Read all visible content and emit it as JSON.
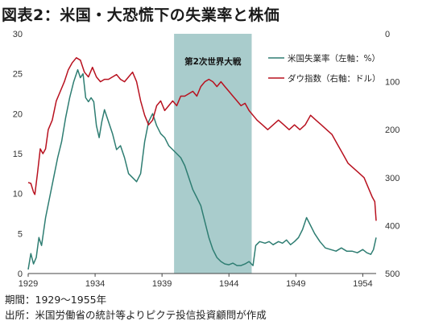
{
  "title": "図表2：米国・大恐慌下の失業率と株価",
  "notes": {
    "period": "期間：1929～1955年",
    "source": "出所：米国労働省の統計等よりピクテ投信投資顧問が作成"
  },
  "chart_data": {
    "type": "line",
    "title": "図表2：米国・大恐慌下の失業率と株価",
    "x_ticks": [
      "1929",
      "1934",
      "1939",
      "1944",
      "1949",
      "1954"
    ],
    "x_range": [
      1929,
      1955
    ],
    "left_axis": {
      "label": "",
      "range": [
        0,
        30
      ],
      "ticks": [
        "0",
        "5",
        "10",
        "15",
        "20",
        "25",
        "30"
      ]
    },
    "right_axis": {
      "label": "",
      "range": [
        0,
        500
      ],
      "inverted": true,
      "ticks": [
        "0",
        "100",
        "200",
        "300",
        "400",
        "500"
      ]
    },
    "shaded_period": {
      "label": "第2次世界大戦",
      "start": 1939.9,
      "end": 1945.7,
      "color": "#a9cccc"
    },
    "grid": false,
    "legend_position": "top-right",
    "colors": {
      "unemployment": "#2e7d72",
      "dow": "#b8111f"
    },
    "series": [
      {
        "name": "米国失業率（左軸：%）",
        "axis": "left",
        "x": [
          1929.0,
          1929.2,
          1929.4,
          1929.6,
          1929.8,
          1930.0,
          1930.3,
          1930.6,
          1930.9,
          1931.2,
          1931.5,
          1931.8,
          1932.1,
          1932.4,
          1932.7,
          1932.9,
          1933.1,
          1933.3,
          1933.5,
          1933.7,
          1933.9,
          1934.1,
          1934.3,
          1934.5,
          1934.7,
          1935.0,
          1935.3,
          1935.6,
          1935.9,
          1936.2,
          1936.5,
          1936.8,
          1937.1,
          1937.4,
          1937.7,
          1938.0,
          1938.3,
          1938.6,
          1938.9,
          1939.2,
          1939.5,
          1939.8,
          1940.1,
          1940.4,
          1940.7,
          1941.0,
          1941.3,
          1941.6,
          1941.9,
          1942.2,
          1942.5,
          1942.8,
          1943.1,
          1943.4,
          1943.7,
          1944.0,
          1944.3,
          1944.6,
          1944.9,
          1945.2,
          1945.5,
          1945.8,
          1946.0,
          1946.3,
          1946.7,
          1947.0,
          1947.3,
          1947.7,
          1948.0,
          1948.3,
          1948.6,
          1948.9,
          1949.2,
          1949.5,
          1949.8,
          1950.1,
          1950.4,
          1950.8,
          1951.2,
          1951.6,
          1952.0,
          1952.4,
          1952.8,
          1953.2,
          1953.6,
          1954.0,
          1954.3,
          1954.6,
          1954.8,
          1955.0
        ],
        "values": [
          0.5,
          2.5,
          1.2,
          2.0,
          4.5,
          3.5,
          7.0,
          9.5,
          12.0,
          14.5,
          16.5,
          19.5,
          22.0,
          24.0,
          25.5,
          24.5,
          25.0,
          22.0,
          21.5,
          22.0,
          21.5,
          18.5,
          17.0,
          19.0,
          20.5,
          19.0,
          17.5,
          15.5,
          16.0,
          14.5,
          12.5,
          12.0,
          11.5,
          12.5,
          16.5,
          19.0,
          20.0,
          18.5,
          17.5,
          17.0,
          16.0,
          15.5,
          15.0,
          14.5,
          13.5,
          12.0,
          10.5,
          9.5,
          8.5,
          6.5,
          4.5,
          3.0,
          2.0,
          1.5,
          1.2,
          1.1,
          1.3,
          1.0,
          1.0,
          1.2,
          1.5,
          1.0,
          3.5,
          4.0,
          3.8,
          4.0,
          3.6,
          4.0,
          3.8,
          4.2,
          3.6,
          4.0,
          4.5,
          5.5,
          7.0,
          6.0,
          5.0,
          4.0,
          3.2,
          3.0,
          2.8,
          3.2,
          2.8,
          2.8,
          2.6,
          3.0,
          2.6,
          2.4,
          3.0,
          4.5
        ]
      },
      {
        "name": "ダウ指数（右軸：ドル）",
        "axis": "right",
        "x": [
          1929.0,
          1929.2,
          1929.4,
          1929.5,
          1929.7,
          1929.9,
          1930.1,
          1930.3,
          1930.5,
          1930.8,
          1931.1,
          1931.4,
          1931.7,
          1932.0,
          1932.3,
          1932.6,
          1932.9,
          1933.2,
          1933.5,
          1933.8,
          1934.1,
          1934.4,
          1934.7,
          1935.0,
          1935.3,
          1935.6,
          1935.9,
          1936.2,
          1936.5,
          1936.8,
          1937.1,
          1937.4,
          1937.7,
          1938.0,
          1938.3,
          1938.6,
          1938.9,
          1939.2,
          1939.5,
          1939.8,
          1940.1,
          1940.4,
          1940.7,
          1941.0,
          1941.3,
          1941.6,
          1941.9,
          1942.2,
          1942.5,
          1942.8,
          1943.1,
          1943.4,
          1943.7,
          1944.0,
          1944.3,
          1944.6,
          1944.9,
          1945.2,
          1945.5,
          1945.8,
          1946.1,
          1946.5,
          1946.9,
          1947.3,
          1947.7,
          1948.1,
          1948.5,
          1948.9,
          1949.3,
          1949.7,
          1950.1,
          1950.5,
          1950.9,
          1951.3,
          1951.7,
          1952.1,
          1952.5,
          1952.9,
          1953.3,
          1953.7,
          1954.1,
          1954.4,
          1954.7,
          1954.9,
          1955.0
        ],
        "values": [
          310,
          312,
          330,
          335,
          290,
          240,
          250,
          240,
          200,
          180,
          140,
          120,
          100,
          75,
          60,
          50,
          55,
          80,
          90,
          70,
          90,
          100,
          95,
          95,
          90,
          85,
          95,
          100,
          90,
          80,
          100,
          140,
          170,
          190,
          180,
          150,
          140,
          160,
          150,
          140,
          150,
          130,
          130,
          125,
          120,
          130,
          110,
          100,
          95,
          100,
          110,
          100,
          110,
          120,
          130,
          140,
          150,
          145,
          160,
          170,
          180,
          190,
          200,
          190,
          180,
          190,
          200,
          190,
          200,
          190,
          170,
          180,
          190,
          200,
          210,
          230,
          250,
          270,
          280,
          290,
          300,
          320,
          340,
          350,
          390
        ]
      }
    ]
  }
}
